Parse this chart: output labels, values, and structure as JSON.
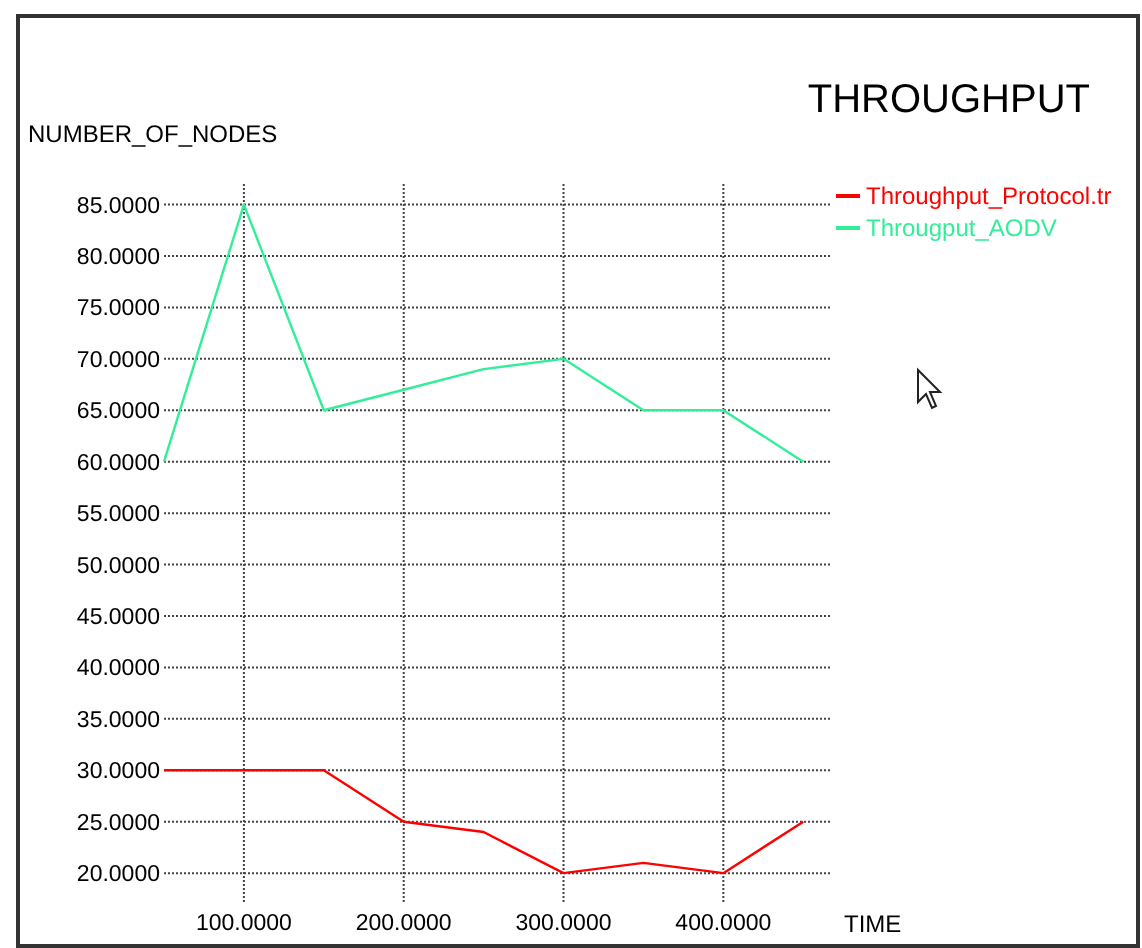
{
  "chart_data": {
    "type": "line",
    "title": "THROUGHPUT",
    "xlabel": "TIME",
    "ylabel": "NUMBER_OF_NODES",
    "x": [
      50,
      100,
      150,
      200,
      250,
      300,
      350,
      400,
      450
    ],
    "series": [
      {
        "name": "Throughput_Protocol.tr",
        "color": "#ff0000",
        "values": [
          30,
          30,
          30,
          25,
          24,
          20,
          21,
          20,
          25
        ]
      },
      {
        "name": "Througput_AODV",
        "color": "#33ee99",
        "values": [
          60,
          85,
          65,
          67,
          69,
          70,
          65,
          65,
          60
        ]
      }
    ],
    "xlim": [
      50,
      468
    ],
    "ylim": [
      17,
      87
    ],
    "xticks": [
      {
        "value": 100,
        "label": "100.0000"
      },
      {
        "value": 200,
        "label": "200.0000"
      },
      {
        "value": 300,
        "label": "300.0000"
      },
      {
        "value": 400,
        "label": "400.0000"
      }
    ],
    "yticks": [
      {
        "value": 20,
        "label": "20.0000"
      },
      {
        "value": 25,
        "label": "25.0000"
      },
      {
        "value": 30,
        "label": "30.0000"
      },
      {
        "value": 35,
        "label": "35.0000"
      },
      {
        "value": 40,
        "label": "40.0000"
      },
      {
        "value": 45,
        "label": "45.0000"
      },
      {
        "value": 50,
        "label": "50.0000"
      },
      {
        "value": 55,
        "label": "55.0000"
      },
      {
        "value": 60,
        "label": "60.0000"
      },
      {
        "value": 65,
        "label": "65.0000"
      },
      {
        "value": 70,
        "label": "70.0000"
      },
      {
        "value": 75,
        "label": "75.0000"
      },
      {
        "value": 80,
        "label": "80.0000"
      },
      {
        "value": 85,
        "label": "85.0000"
      }
    ],
    "grid": true,
    "legend": "top right",
    "marker": "none",
    "line_style": "solid"
  }
}
